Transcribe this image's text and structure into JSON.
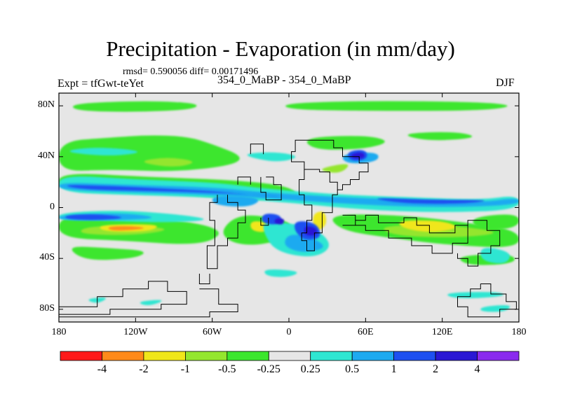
{
  "title": "Precipitation - Evaporation (in mm/day)",
  "stats": "rmsd= 0.590056 diff= 0.00171496",
  "experiment": "Expt = tfGwt-teYet",
  "runs": "354_0_MaBP - 354_0_MaBP",
  "season": "DJF",
  "y_ticks": [
    "80N",
    "40N",
    "0",
    "40S",
    "80S"
  ],
  "x_ticks": [
    "180",
    "120W",
    "60W",
    "0",
    "60E",
    "120E",
    "180"
  ],
  "colorbar": {
    "labels": [
      "-4",
      "-2",
      "-1",
      "-0.5",
      "-0.25",
      "0.25",
      "0.5",
      "1",
      "2",
      "4"
    ],
    "colors": [
      "#ff1a1a",
      "#ff8a1a",
      "#f0e61a",
      "#94e62e",
      "#3ce62e",
      "#e6e6e6",
      "#2ee6d2",
      "#1eaaf0",
      "#1e50f0",
      "#2a18d4",
      "#8a2aee"
    ]
  },
  "map_colors": {
    "background": "#e6e6e6",
    "coastline": "#000000",
    "green": "#3ce62e",
    "lightgreen": "#94e62e",
    "yellow": "#f0e61a",
    "orange": "#ff8a1a",
    "cyan": "#2ee6d2",
    "skyblue": "#1eaaf0",
    "blue": "#1e50f0",
    "navy": "#2a18d4"
  }
}
